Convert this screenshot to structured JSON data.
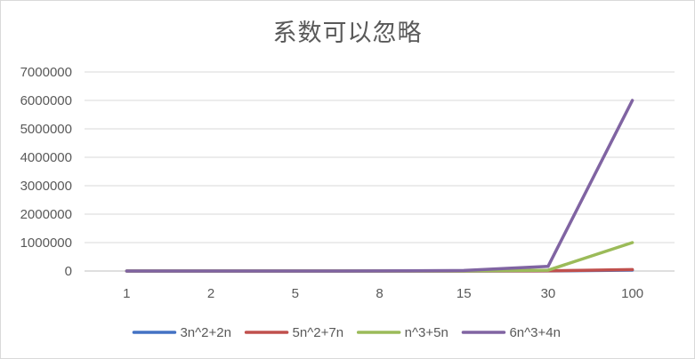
{
  "chart_data": {
    "type": "line",
    "title": "系数可以忽略",
    "xlabel": "",
    "ylabel": "",
    "categories": [
      "1",
      "2",
      "5",
      "8",
      "15",
      "30",
      "100"
    ],
    "ylim": [
      0,
      7000000
    ],
    "yticks": [
      0,
      1000000,
      2000000,
      3000000,
      4000000,
      5000000,
      6000000,
      7000000
    ],
    "ytick_labels": [
      "0",
      "1000000",
      "2000000",
      "3000000",
      "4000000",
      "5000000",
      "6000000",
      "7000000"
    ],
    "grid": true,
    "legend_position": "bottom",
    "series": [
      {
        "name": "3n^2+2n",
        "color": "#4472c4",
        "values": [
          5,
          16,
          85,
          208,
          705,
          2760,
          30200
        ]
      },
      {
        "name": "5n^2+7n",
        "color": "#c0504d",
        "values": [
          12,
          34,
          160,
          376,
          1230,
          4710,
          50700
        ]
      },
      {
        "name": "n^3+5n",
        "color": "#9bbb59",
        "values": [
          6,
          18,
          150,
          552,
          3450,
          27150,
          1000500
        ]
      },
      {
        "name": "6n^3+4n",
        "color": "#8064a2",
        "values": [
          10,
          56,
          770,
          3104,
          20310,
          162120,
          6000400
        ]
      }
    ]
  }
}
